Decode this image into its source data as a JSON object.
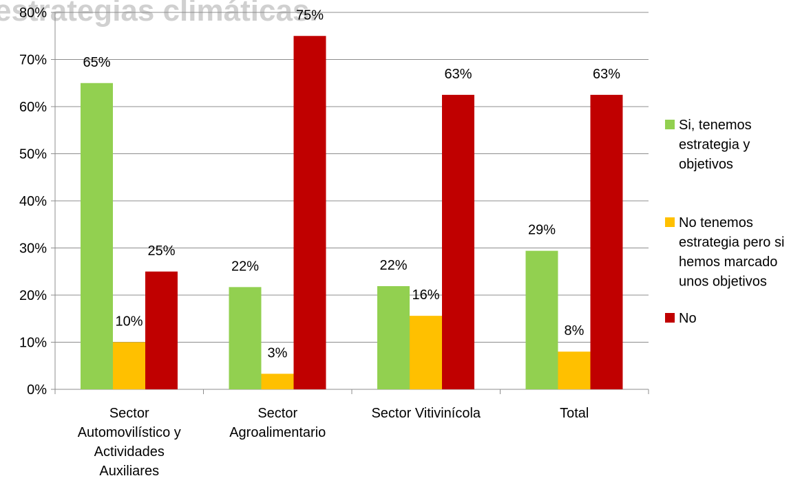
{
  "page": {
    "clipped_title": "estrategias climáticas."
  },
  "chart_data": {
    "type": "bar",
    "categories": [
      [
        "Sector",
        "Automovilístico y",
        "Actividades",
        "Auxiliares"
      ],
      [
        "Sector",
        "Agroalimentario"
      ],
      [
        "Sector Vitivinícola"
      ],
      [
        "Total"
      ]
    ],
    "series": [
      {
        "name": [
          "Si, tenemos",
          "estrategia y",
          "objetivos"
        ],
        "color": "#92d050",
        "values": [
          65,
          21.7,
          21.9,
          29.4
        ],
        "labels": [
          "65%",
          "22%",
          "22%",
          "29%"
        ]
      },
      {
        "name": [
          "No tenemos",
          "estrategia pero si",
          "hemos marcado",
          "unos objetivos"
        ],
        "color": "#ffc000",
        "values": [
          10,
          3.3,
          15.6,
          8
        ],
        "labels": [
          "10%",
          "3%",
          "16%",
          "8%"
        ]
      },
      {
        "name": [
          "No"
        ],
        "color": "#c00000",
        "values": [
          25,
          75,
          62.5,
          62.5
        ],
        "labels": [
          "25%",
          "75%",
          "63%",
          "63%"
        ]
      }
    ],
    "ylim": [
      0,
      80
    ],
    "yticks": [
      "0%",
      "10%",
      "20%",
      "30%",
      "40%",
      "50%",
      "60%",
      "70%",
      "80%"
    ],
    "grid": true,
    "legend_position": "right"
  }
}
